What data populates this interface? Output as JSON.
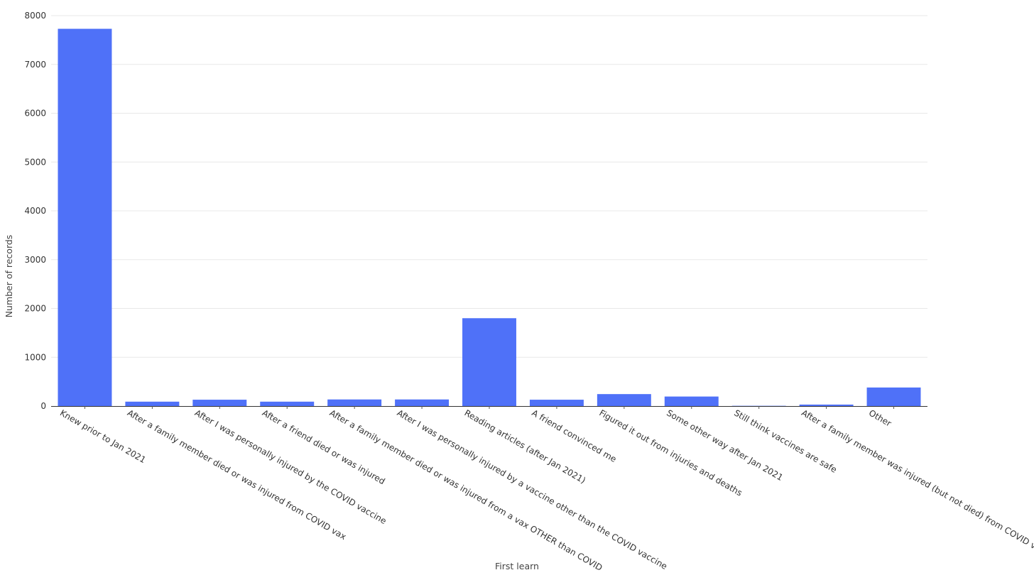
{
  "chart_data": {
    "type": "bar",
    "xlabel": "First learn",
    "ylabel": "Number of records",
    "ylim": [
      0,
      8000
    ],
    "yticks": [
      0,
      1000,
      2000,
      3000,
      4000,
      5000,
      6000,
      7000,
      8000
    ],
    "grid": true,
    "bar_color": "#4f71f8",
    "categories": [
      "Knew prior to Jan 2021",
      "After a family member died or was injured from COVID vax",
      "After I was personally injured by the COVID vaccine",
      "After a friend died or was injured",
      "After a family member died or was injured from a vax OTHER than COVID",
      "After I was personally injured by a vaccine other than the COVID vaccine",
      "Reading articles (after Jan 2021)",
      "A friend convinced me",
      "Figured it out from injuries and deaths",
      "Some other way after Jan 2021",
      "Still think vaccines are safe",
      "After a family member was injured (but not died) from COVID vax",
      "Other"
    ],
    "values": [
      7730,
      90,
      130,
      90,
      135,
      135,
      1800,
      130,
      245,
      195,
      5,
      30,
      380
    ]
  }
}
